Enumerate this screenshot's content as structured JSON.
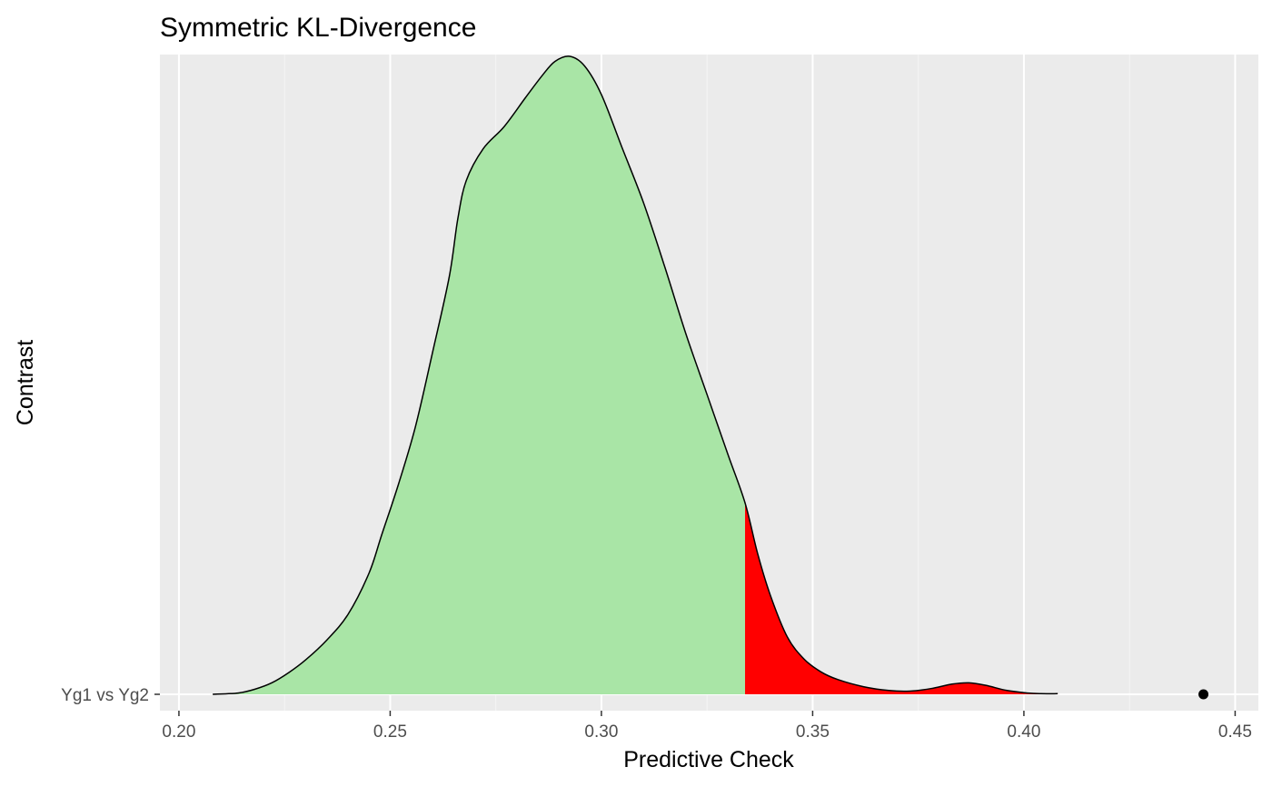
{
  "chart_data": {
    "type": "density",
    "title": "Symmetric KL-Divergence",
    "xlabel": "Predictive Check",
    "ylabel": "Contrast",
    "xlim": [
      0.1955,
      0.4555
    ],
    "x_ticks": [
      "0.20",
      "0.25",
      "0.30",
      "0.35",
      "0.40",
      "0.45"
    ],
    "x_tick_values": [
      0.2,
      0.25,
      0.3,
      0.35,
      0.4,
      0.45
    ],
    "y_categories": [
      "Yg1 vs Yg2"
    ],
    "grid": true,
    "legend": "none",
    "colors": {
      "panel_background": "#ebebeb",
      "grid_major": "#ffffff",
      "grid_minor": "#f5f5f5",
      "density_fill": "#a9e5a6",
      "tail_fill": "#ff0000",
      "outline": "#000000",
      "point": "#000000"
    },
    "density": {
      "category": "Yg1 vs Yg2",
      "tail_threshold": 0.334,
      "points": [
        [
          0.208,
          0.0
        ],
        [
          0.214,
          0.002
        ],
        [
          0.218,
          0.008
        ],
        [
          0.222,
          0.018
        ],
        [
          0.226,
          0.034
        ],
        [
          0.23,
          0.054
        ],
        [
          0.235,
          0.085
        ],
        [
          0.24,
          0.125
        ],
        [
          0.245,
          0.19
        ],
        [
          0.248,
          0.25
        ],
        [
          0.252,
          0.33
        ],
        [
          0.256,
          0.42
        ],
        [
          0.26,
          0.535
        ],
        [
          0.264,
          0.655
        ],
        [
          0.266,
          0.745
        ],
        [
          0.268,
          0.805
        ],
        [
          0.272,
          0.855
        ],
        [
          0.277,
          0.89
        ],
        [
          0.282,
          0.935
        ],
        [
          0.286,
          0.97
        ],
        [
          0.289,
          0.992
        ],
        [
          0.2925,
          1.0
        ],
        [
          0.296,
          0.985
        ],
        [
          0.3,
          0.94
        ],
        [
          0.305,
          0.855
        ],
        [
          0.31,
          0.77
        ],
        [
          0.315,
          0.67
        ],
        [
          0.32,
          0.565
        ],
        [
          0.325,
          0.47
        ],
        [
          0.33,
          0.375
        ],
        [
          0.334,
          0.3
        ],
        [
          0.337,
          0.22
        ],
        [
          0.34,
          0.155
        ],
        [
          0.344,
          0.09
        ],
        [
          0.348,
          0.055
        ],
        [
          0.352,
          0.035
        ],
        [
          0.356,
          0.023
        ],
        [
          0.362,
          0.012
        ],
        [
          0.368,
          0.006
        ],
        [
          0.373,
          0.005
        ],
        [
          0.378,
          0.009
        ],
        [
          0.383,
          0.016
        ],
        [
          0.387,
          0.018
        ],
        [
          0.391,
          0.014
        ],
        [
          0.396,
          0.006
        ],
        [
          0.401,
          0.002
        ],
        [
          0.404,
          0.001
        ],
        [
          0.408,
          0.001
        ]
      ]
    },
    "observed_point": {
      "category": "Yg1 vs Yg2",
      "x": 0.4425
    }
  }
}
